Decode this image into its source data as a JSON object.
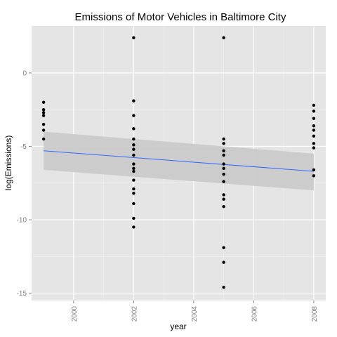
{
  "chart_data": {
    "type": "scatter",
    "title": "Emissions of Motor Vehicles in Baltimore City",
    "xlabel": "year",
    "ylabel": "log(Emissions)",
    "xlim": [
      1998.6,
      2008.4
    ],
    "ylim": [
      -15.5,
      3.2
    ],
    "x_ticks": [
      2000,
      2002,
      2004,
      2006,
      2008
    ],
    "x_tick_labels": [
      "2000",
      "2002",
      "2004",
      "2006",
      "2008"
    ],
    "y_ticks": [
      0,
      -5,
      -10,
      -15
    ],
    "y_tick_labels": [
      "0",
      "-5",
      "-10",
      "-15"
    ],
    "grid": true,
    "colors": {
      "panel": "#e5e5e5",
      "grid_major": "#ffffff",
      "grid_minor": "#f2f2f2",
      "points": "#000000",
      "trend_line": "#3366ff",
      "confidence_band": "#c9c9c9"
    },
    "points": [
      {
        "x": 1999,
        "y": -2.0
      },
      {
        "x": 1999,
        "y": -2.5
      },
      {
        "x": 1999,
        "y": -2.7
      },
      {
        "x": 1999,
        "y": -2.9
      },
      {
        "x": 1999,
        "y": -3.5
      },
      {
        "x": 1999,
        "y": -3.9
      },
      {
        "x": 1999,
        "y": -4.5
      },
      {
        "x": 2002,
        "y": 2.4
      },
      {
        "x": 2002,
        "y": -1.9
      },
      {
        "x": 2002,
        "y": -2.9
      },
      {
        "x": 2002,
        "y": -3.8
      },
      {
        "x": 2002,
        "y": -4.5
      },
      {
        "x": 2002,
        "y": -4.9
      },
      {
        "x": 2002,
        "y": -5.2
      },
      {
        "x": 2002,
        "y": -5.6
      },
      {
        "x": 2002,
        "y": -6.2
      },
      {
        "x": 2002,
        "y": -6.5
      },
      {
        "x": 2002,
        "y": -6.7
      },
      {
        "x": 2002,
        "y": -7.3
      },
      {
        "x": 2002,
        "y": -7.9
      },
      {
        "x": 2002,
        "y": -8.2
      },
      {
        "x": 2002,
        "y": -8.9
      },
      {
        "x": 2002,
        "y": -9.9
      },
      {
        "x": 2002,
        "y": -10.5
      },
      {
        "x": 2005,
        "y": 2.4
      },
      {
        "x": 2005,
        "y": -4.5
      },
      {
        "x": 2005,
        "y": -4.8
      },
      {
        "x": 2005,
        "y": -5.3
      },
      {
        "x": 2005,
        "y": -5.6
      },
      {
        "x": 2005,
        "y": -6.2
      },
      {
        "x": 2005,
        "y": -6.5
      },
      {
        "x": 2005,
        "y": -6.9
      },
      {
        "x": 2005,
        "y": -7.4
      },
      {
        "x": 2005,
        "y": -8.3
      },
      {
        "x": 2005,
        "y": -8.6
      },
      {
        "x": 2005,
        "y": -9.1
      },
      {
        "x": 2005,
        "y": -11.9
      },
      {
        "x": 2005,
        "y": -12.9
      },
      {
        "x": 2005,
        "y": -14.6
      },
      {
        "x": 2008,
        "y": -2.2
      },
      {
        "x": 2008,
        "y": -2.6
      },
      {
        "x": 2008,
        "y": -3.1
      },
      {
        "x": 2008,
        "y": -3.6
      },
      {
        "x": 2008,
        "y": -3.9
      },
      {
        "x": 2008,
        "y": -4.3
      },
      {
        "x": 2008,
        "y": -4.8
      },
      {
        "x": 2008,
        "y": -5.1
      },
      {
        "x": 2008,
        "y": -6.6
      },
      {
        "x": 2008,
        "y": -7.0
      }
    ],
    "trend": {
      "type": "linear",
      "x": [
        1999,
        2008
      ],
      "y": [
        -5.3,
        -6.7
      ],
      "ci_lower": [
        -6.6,
        -8.0
      ],
      "ci_upper": [
        -4.0,
        -5.5
      ]
    }
  }
}
